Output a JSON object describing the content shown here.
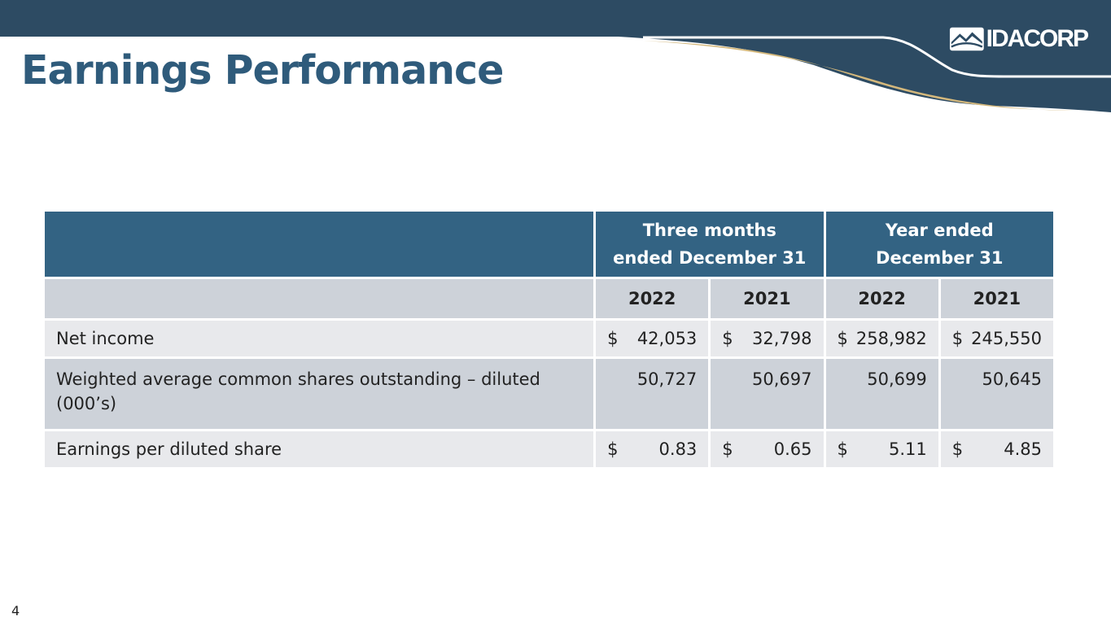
{
  "slide": {
    "title": "Earnings Performance",
    "page_number": "4",
    "logo": {
      "text": "IDACORP",
      "mark": "mountain-logo-icon"
    }
  },
  "table": {
    "group_headers": [
      {
        "line1": "Three months",
        "line2": "ended December 31"
      },
      {
        "line1": "Year ended",
        "line2": "December 31"
      }
    ],
    "years": [
      "2022",
      "2021",
      "2022",
      "2021"
    ],
    "rows": [
      {
        "label": "Net income",
        "values": [
          {
            "currency": "$",
            "amount": "42,053"
          },
          {
            "currency": "$",
            "amount": "32,798"
          },
          {
            "currency": "$",
            "amount": "258,982"
          },
          {
            "currency": "$",
            "amount": "245,550"
          }
        ]
      },
      {
        "label": "Weighted average common shares outstanding – diluted (000’s)",
        "values": [
          {
            "currency": "",
            "amount": "50,727"
          },
          {
            "currency": "",
            "amount": "50,697"
          },
          {
            "currency": "",
            "amount": "50,699"
          },
          {
            "currency": "",
            "amount": "50,645"
          }
        ]
      },
      {
        "label": "Earnings per diluted share",
        "values": [
          {
            "currency": "$",
            "amount": "0.83"
          },
          {
            "currency": "$",
            "amount": "0.65"
          },
          {
            "currency": "$",
            "amount": "5.11"
          },
          {
            "currency": "$",
            "amount": "4.85"
          }
        ]
      }
    ]
  },
  "colors": {
    "header_navy": "#2d4b63",
    "accent_gold": "#d4b87c",
    "title_blue": "#2f5b7b",
    "table_header": "#336383",
    "row_dark": "#cdd2d9",
    "row_light": "#e8e9ec"
  }
}
